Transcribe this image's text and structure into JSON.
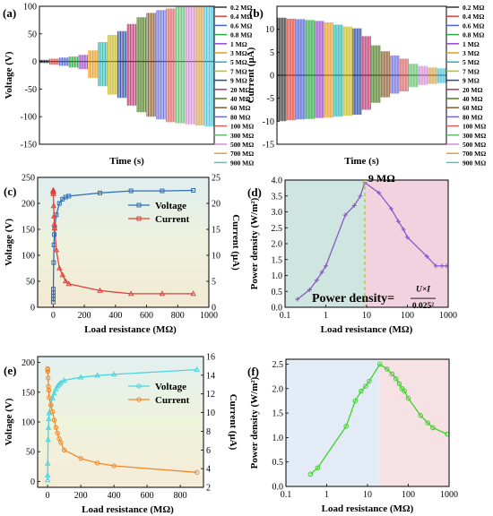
{
  "chart_data": [
    {
      "panel": "(a)",
      "type": "line",
      "xlabel": "Time (s)",
      "ylabel": "Voltage (V)",
      "ylim": [
        -150,
        100
      ],
      "yticks": [
        100,
        50,
        0,
        -50,
        -100,
        -150
      ],
      "legend_position": "right",
      "series": [
        {
          "name": "0.2 MΩ",
          "amplitude_pos": 3,
          "amplitude_neg": -3,
          "color": "#333333"
        },
        {
          "name": "0.4 MΩ",
          "amplitude_pos": 5,
          "amplitude_neg": -6,
          "color": "#e0413a"
        },
        {
          "name": "0.6 MΩ",
          "amplitude_pos": 7,
          "amplitude_neg": -8,
          "color": "#4b62d6"
        },
        {
          "name": "0.8 MΩ",
          "amplitude_pos": 9,
          "amplitude_neg": -11,
          "color": "#2aa640"
        },
        {
          "name": "1 MΩ",
          "amplitude_pos": 12,
          "amplitude_neg": -14,
          "color": "#9a46c9"
        },
        {
          "name": "3 MΩ",
          "amplitude_pos": 20,
          "amplitude_neg": -30,
          "color": "#e39a1f"
        },
        {
          "name": "5 MΩ",
          "amplitude_pos": 35,
          "amplitude_neg": -45,
          "color": "#2bb5b5"
        },
        {
          "name": "7 MΩ",
          "amplitude_pos": 48,
          "amplitude_neg": -60,
          "color": "#c9b81a"
        },
        {
          "name": "9 MΩ",
          "amplitude_pos": 55,
          "amplitude_neg": -66,
          "color": "#2a47a0"
        },
        {
          "name": "20 MΩ",
          "amplitude_pos": 68,
          "amplitude_neg": -80,
          "color": "#b8326a"
        },
        {
          "name": "40 MΩ",
          "amplitude_pos": 80,
          "amplitude_neg": -92,
          "color": "#4d7a1f"
        },
        {
          "name": "60 MΩ",
          "amplitude_pos": 88,
          "amplitude_neg": -100,
          "color": "#8a5a2b"
        },
        {
          "name": "80 MΩ",
          "amplitude_pos": 93,
          "amplitude_neg": -105,
          "color": "#6a6ad8"
        },
        {
          "name": "100 MΩ",
          "amplitude_pos": 96,
          "amplitude_neg": -110,
          "color": "#d95f5f"
        },
        {
          "name": "300 MΩ",
          "amplitude_pos": 99,
          "amplitude_neg": -112,
          "color": "#5fbf6f"
        },
        {
          "name": "500 MΩ",
          "amplitude_pos": 100,
          "amplitude_neg": -114,
          "color": "#d48ad4"
        },
        {
          "name": "700 MΩ",
          "amplitude_pos": 101,
          "amplitude_neg": -116,
          "color": "#d4a24a"
        },
        {
          "name": "900 MΩ",
          "amplitude_pos": 102,
          "amplitude_neg": -118,
          "color": "#49c0d8"
        }
      ]
    },
    {
      "panel": "(b)",
      "type": "line",
      "xlabel": "Time (s)",
      "ylabel": "Current (μA)",
      "ylim": [
        -15,
        15
      ],
      "yticks": [
        10,
        5,
        0,
        -5,
        -10,
        -15
      ],
      "legend_position": "right",
      "series": [
        {
          "name": "0.2 MΩ",
          "amplitude_pos": 12.5,
          "amplitude_neg": -10,
          "color": "#333333"
        },
        {
          "name": "0.4 MΩ",
          "amplitude_pos": 12.3,
          "amplitude_neg": -9.8,
          "color": "#e0413a"
        },
        {
          "name": "0.6 MΩ",
          "amplitude_pos": 12.2,
          "amplitude_neg": -9.6,
          "color": "#4b62d6"
        },
        {
          "name": "0.8 MΩ",
          "amplitude_pos": 12.0,
          "amplitude_neg": -9.5,
          "color": "#2aa640"
        },
        {
          "name": "1 MΩ",
          "amplitude_pos": 11.8,
          "amplitude_neg": -9.3,
          "color": "#9a46c9"
        },
        {
          "name": "3 MΩ",
          "amplitude_pos": 11.5,
          "amplitude_neg": -9.2,
          "color": "#e39a1f"
        },
        {
          "name": "5 MΩ",
          "amplitude_pos": 11.0,
          "amplitude_neg": -9.0,
          "color": "#2bb5b5"
        },
        {
          "name": "7 MΩ",
          "amplitude_pos": 10.6,
          "amplitude_neg": -8.8,
          "color": "#c9b81a"
        },
        {
          "name": "9 MΩ",
          "amplitude_pos": 10.2,
          "amplitude_neg": -8.6,
          "color": "#2a47a0"
        },
        {
          "name": "20 MΩ",
          "amplitude_pos": 8.5,
          "amplitude_neg": -7.5,
          "color": "#b8326a"
        },
        {
          "name": "40 MΩ",
          "amplitude_pos": 6.5,
          "amplitude_neg": -6.0,
          "color": "#4d7a1f"
        },
        {
          "name": "60 MΩ",
          "amplitude_pos": 5.2,
          "amplitude_neg": -4.8,
          "color": "#8a5a2b"
        },
        {
          "name": "80 MΩ",
          "amplitude_pos": 4.3,
          "amplitude_neg": -4.0,
          "color": "#6a6ad8"
        },
        {
          "name": "100 MΩ",
          "amplitude_pos": 3.6,
          "amplitude_neg": -3.5,
          "color": "#d95f5f"
        },
        {
          "name": "300 MΩ",
          "amplitude_pos": 2.5,
          "amplitude_neg": -2.6,
          "color": "#5fbf6f"
        },
        {
          "name": "500 MΩ",
          "amplitude_pos": 2.0,
          "amplitude_neg": -2.1,
          "color": "#d48ad4"
        },
        {
          "name": "700 MΩ",
          "amplitude_pos": 1.7,
          "amplitude_neg": -1.9,
          "color": "#d4a24a"
        },
        {
          "name": "900 MΩ",
          "amplitude_pos": 1.5,
          "amplitude_neg": -1.7,
          "color": "#49c0d8"
        }
      ]
    },
    {
      "panel": "(c)",
      "type": "line",
      "xlabel": "Load resistance (MΩ)",
      "ylabel": "Voltage (V)",
      "ylabel_right": "Current (μA)",
      "xlim": [
        -100,
        1000
      ],
      "ylim": [
        0,
        250
      ],
      "ylim_right": [
        0,
        25
      ],
      "xticks": [
        0,
        200,
        400,
        600,
        800,
        1000
      ],
      "yticks": [
        0,
        50,
        100,
        150,
        200,
        250
      ],
      "yticks_right": [
        0,
        5,
        10,
        15,
        20,
        25
      ],
      "x": [
        0.2,
        0.4,
        0.6,
        0.8,
        1,
        3,
        5,
        7,
        9,
        20,
        40,
        60,
        80,
        100,
        300,
        500,
        700,
        900
      ],
      "series": [
        {
          "name": "Voltage",
          "axis": "left",
          "color": "#2f6db5",
          "values": [
            10,
            16,
            22,
            28,
            35,
            86,
            120,
            140,
            152,
            178,
            200,
            208,
            212,
            214,
            220,
            224,
            224,
            225
          ]
        },
        {
          "name": "Current",
          "axis": "right",
          "color": "#e0413a",
          "values": [
            22.5,
            22.5,
            22.3,
            22.1,
            21.8,
            19.5,
            17.5,
            16.0,
            15.2,
            11.0,
            7.5,
            6.2,
            5.0,
            4.5,
            3.2,
            2.6,
            2.6,
            2.6
          ]
        }
      ],
      "legend_position": "top-right"
    },
    {
      "panel": "(d)",
      "type": "line",
      "xlabel": "Load resistance (MΩ)",
      "ylabel": "Power density (W/m²)",
      "xscale": "log",
      "xlim": [
        0.1,
        1000
      ],
      "ylim": [
        0,
        4
      ],
      "xticks": [
        0.1,
        1,
        10,
        100,
        1000
      ],
      "xticklabels": [
        "0.1",
        "1",
        "10",
        "100",
        "1000"
      ],
      "yticks": [
        0.0,
        0.5,
        1.0,
        1.5,
        2.0,
        2.5,
        3.0,
        3.5,
        4.0
      ],
      "x": [
        0.2,
        0.4,
        0.6,
        0.8,
        1,
        3,
        5,
        7,
        9,
        20,
        40,
        60,
        80,
        100,
        300,
        500,
        700,
        900
      ],
      "series": [
        {
          "name": "",
          "color": "#8a5bc0",
          "values": [
            0.25,
            0.55,
            0.85,
            1.1,
            1.3,
            2.9,
            3.2,
            3.5,
            3.92,
            3.6,
            3.1,
            2.7,
            2.45,
            2.2,
            1.6,
            1.3,
            1.3,
            1.3
          ]
        }
      ],
      "annotations": [
        {
          "text": "9 MΩ"
        },
        {
          "text": "Power density=",
          "formula_numerator": "U×I",
          "formula_denominator": "0.025²"
        }
      ],
      "regions": [
        {
          "from": 0.1,
          "to": 9,
          "color": "#cfe5e0"
        },
        {
          "from": 9,
          "to": 1000,
          "color": "#f3d2e0"
        }
      ],
      "divider_x": 9
    },
    {
      "panel": "(e)",
      "type": "line",
      "xlabel": "Load resistance (MΩ)",
      "ylabel": "Voltage (V)",
      "ylabel_right": "Current (μA)",
      "xlim": [
        -60,
        940
      ],
      "ylim": [
        -10,
        210
      ],
      "ylim_right": [
        2,
        16
      ],
      "xticks": [
        0,
        200,
        400,
        600,
        800
      ],
      "yticks": [
        0,
        50,
        100,
        150,
        200
      ],
      "yticks_right": [
        2,
        4,
        6,
        8,
        10,
        12,
        14,
        16
      ],
      "x": [
        0.4,
        0.6,
        1,
        3,
        5,
        7,
        9,
        20,
        30,
        40,
        50,
        60,
        70,
        80,
        100,
        200,
        300,
        400,
        900
      ],
      "series": [
        {
          "name": "Voltage",
          "axis": "left",
          "color": "#49d4e0",
          "values": [
            2,
            10,
            30,
            70,
            90,
            105,
            115,
            130,
            140,
            148,
            155,
            160,
            163,
            166,
            170,
            175,
            178,
            180,
            188
          ]
        },
        {
          "name": "Current",
          "axis": "right",
          "color": "#f08a2a",
          "values": [
            14.7,
            14.6,
            14.4,
            13.7,
            12.8,
            12.4,
            11.6,
            10.8,
            10.1,
            9.2,
            8.4,
            7.8,
            7.2,
            6.8,
            6.0,
            5.1,
            4.6,
            4.3,
            3.6
          ]
        }
      ],
      "legend_position": "center-right"
    },
    {
      "panel": "(f)",
      "type": "line",
      "xlabel": "Load resistance (MΩ)",
      "ylabel": "Power density (W/m²)",
      "xscale": "log",
      "xlim": [
        0.1,
        1000
      ],
      "ylim": [
        0,
        2.6
      ],
      "xticks": [
        0.1,
        1,
        10,
        100,
        1000
      ],
      "xticklabels": [
        "0.1",
        "1",
        "10",
        "100",
        "1000"
      ],
      "yticks": [
        0.0,
        0.5,
        1.0,
        1.5,
        2.0,
        2.5
      ],
      "x": [
        0.4,
        0.6,
        3,
        5,
        7,
        9,
        11,
        20,
        30,
        40,
        50,
        60,
        70,
        80,
        100,
        200,
        300,
        400,
        900
      ],
      "series": [
        {
          "name": "",
          "color": "#3fd12a",
          "values": [
            0.25,
            0.38,
            1.23,
            1.75,
            1.95,
            2.05,
            2.15,
            2.5,
            2.4,
            2.3,
            2.2,
            2.1,
            2.0,
            1.95,
            1.8,
            1.45,
            1.3,
            1.2,
            1.07
          ]
        }
      ],
      "regions": [
        {
          "from": 0.1,
          "to": 20,
          "color": "#e3ecf6"
        },
        {
          "from": 20,
          "to": 1000,
          "color": "#f6e1e4"
        }
      ]
    }
  ]
}
